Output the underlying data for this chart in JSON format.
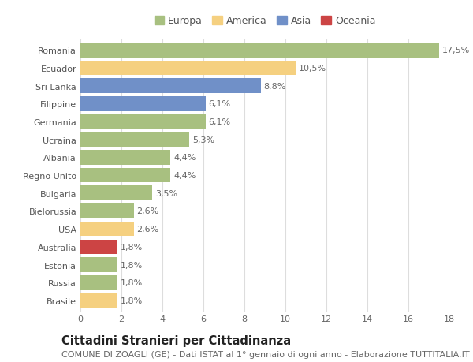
{
  "title": "Cittadini Stranieri per Cittadinanza",
  "subtitle": "COMUNE DI ZOAGLI (GE) - Dati ISTAT al 1° gennaio di ogni anno - Elaborazione TUTTITALIA.IT",
  "categories": [
    "Romania",
    "Ecuador",
    "Sri Lanka",
    "Filippine",
    "Germania",
    "Ucraina",
    "Albania",
    "Regno Unito",
    "Bulgaria",
    "Bielorussia",
    "USA",
    "Australia",
    "Estonia",
    "Russia",
    "Brasile"
  ],
  "values": [
    17.5,
    10.5,
    8.8,
    6.1,
    6.1,
    5.3,
    4.4,
    4.4,
    3.5,
    2.6,
    2.6,
    1.8,
    1.8,
    1.8,
    1.8
  ],
  "labels": [
    "17,5%",
    "10,5%",
    "8,8%",
    "6,1%",
    "6,1%",
    "5,3%",
    "4,4%",
    "4,4%",
    "3,5%",
    "2,6%",
    "2,6%",
    "1,8%",
    "1,8%",
    "1,8%",
    "1,8%"
  ],
  "colors": [
    "#a8c080",
    "#f5d080",
    "#7090c8",
    "#7090c8",
    "#a8c080",
    "#a8c080",
    "#a8c080",
    "#a8c080",
    "#a8c080",
    "#a8c080",
    "#f5d080",
    "#cc4444",
    "#a8c080",
    "#a8c080",
    "#f5d080"
  ],
  "legend": [
    {
      "label": "Europa",
      "color": "#a8c080"
    },
    {
      "label": "America",
      "color": "#f5d080"
    },
    {
      "label": "Asia",
      "color": "#7090c8"
    },
    {
      "label": "Oceania",
      "color": "#cc4444"
    }
  ],
  "xlim": [
    0,
    18
  ],
  "xticks": [
    0,
    2,
    4,
    6,
    8,
    10,
    12,
    14,
    16,
    18
  ],
  "background_color": "#ffffff",
  "grid_color": "#dddddd",
  "bar_height": 0.82,
  "title_fontsize": 10.5,
  "subtitle_fontsize": 8,
  "label_fontsize": 8,
  "tick_fontsize": 8,
  "legend_fontsize": 9,
  "ytick_fontsize": 8
}
